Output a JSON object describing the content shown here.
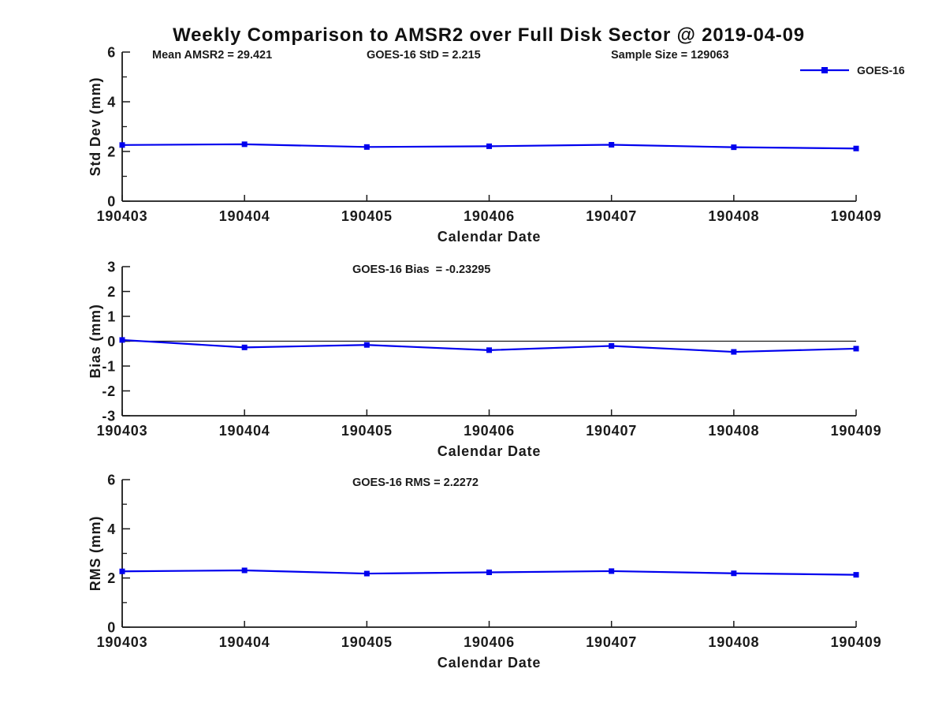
{
  "title": "Weekly Comparison to AMSR2 over Full Disk Sector @ 2019-04-09",
  "figure": {
    "xlabel": "Calendar Date",
    "categories": [
      "190403",
      "190404",
      "190405",
      "190406",
      "190407",
      "190408",
      "190409"
    ],
    "legend": {
      "label": "GOES-16",
      "position": "top-right"
    },
    "colors": {
      "series": "#0000EE",
      "axis": "#1a1a1a",
      "text": "#1a1a1a",
      "zero_line": "#1a1a1a"
    }
  },
  "chart_data": [
    {
      "type": "line",
      "name": "std-dev",
      "ylabel": "Std Dev (mm)",
      "xlabel": "Calendar Date",
      "categories": [
        "190403",
        "190404",
        "190405",
        "190406",
        "190407",
        "190408",
        "190409"
      ],
      "series": [
        {
          "name": "GOES-16",
          "values": [
            2.26,
            2.29,
            2.18,
            2.21,
            2.27,
            2.17,
            2.12
          ]
        }
      ],
      "ylim": [
        0,
        6
      ],
      "yticks": [
        0,
        2,
        4,
        6
      ],
      "minor_yticks": [
        1,
        3,
        5
      ],
      "grid": false,
      "zero_line": false,
      "annotations": [
        "Mean AMSR2 = 29.421",
        "GOES-16 StD = 2.215",
        "Sample Size = 129063"
      ],
      "show_legend": true
    },
    {
      "type": "line",
      "name": "bias",
      "ylabel": "Bias (mm)",
      "xlabel": "Calendar Date",
      "categories": [
        "190403",
        "190404",
        "190405",
        "190406",
        "190407",
        "190408",
        "190409"
      ],
      "series": [
        {
          "name": "GOES-16",
          "values": [
            0.05,
            -0.25,
            -0.15,
            -0.36,
            -0.19,
            -0.43,
            -0.3
          ]
        }
      ],
      "ylim": [
        -3,
        3
      ],
      "yticks": [
        -3,
        -2,
        -1,
        0,
        1,
        2,
        3
      ],
      "minor_yticks": [],
      "grid": false,
      "zero_line": true,
      "annotations": [
        "GOES-16 Bias  = -0.23295"
      ],
      "show_legend": false
    },
    {
      "type": "line",
      "name": "rms",
      "ylabel": "RMS (mm)",
      "xlabel": "Calendar Date",
      "categories": [
        "190403",
        "190404",
        "190405",
        "190406",
        "190407",
        "190408",
        "190409"
      ],
      "series": [
        {
          "name": "GOES-16",
          "values": [
            2.27,
            2.31,
            2.18,
            2.23,
            2.28,
            2.19,
            2.13
          ]
        }
      ],
      "ylim": [
        0,
        6
      ],
      "yticks": [
        0,
        2,
        4,
        6
      ],
      "minor_yticks": [
        1,
        3,
        5
      ],
      "grid": false,
      "zero_line": false,
      "annotations": [
        "GOES-16 RMS = 2.2272"
      ],
      "show_legend": false
    }
  ]
}
